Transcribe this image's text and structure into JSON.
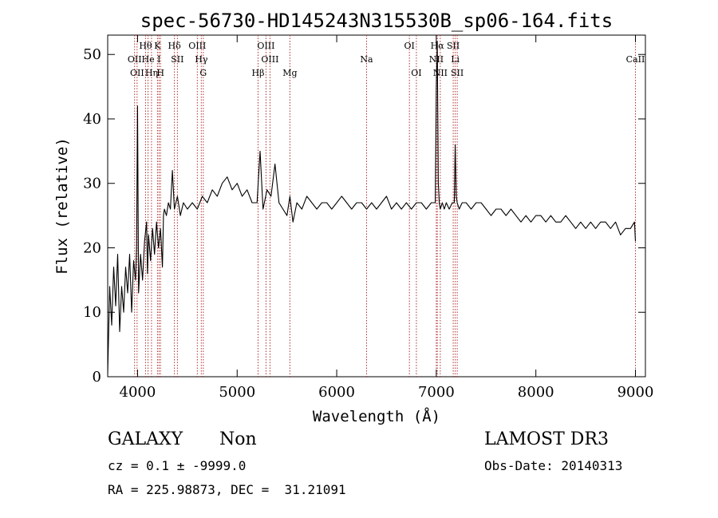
{
  "chart_data": {
    "type": "line",
    "title": "spec-56730-HD145243N315530B_sp06-164.fits",
    "xlabel": "Wavelength (Å)",
    "ylabel": "Flux (relative)",
    "xlim": [
      3700,
      9100
    ],
    "ylim": [
      0,
      53
    ],
    "xticks": [
      4000,
      5000,
      6000,
      7000,
      8000,
      9000
    ],
    "yticks": [
      0,
      10,
      20,
      30,
      40,
      50
    ],
    "grid": false,
    "line_color": "#000000",
    "marker_color": "#b03030",
    "series": [
      {
        "x": [
          3700,
          3720,
          3740,
          3760,
          3780,
          3800,
          3820,
          3840,
          3860,
          3880,
          3900,
          3920,
          3940,
          3960,
          3980,
          3990,
          4000,
          4010,
          4030,
          4050,
          4070,
          4090,
          4100,
          4110,
          4130,
          4150,
          4170,
          4190,
          4210,
          4230,
          4250,
          4260,
          4270,
          4290,
          4310,
          4330,
          4350,
          4370,
          4400,
          4430,
          4460,
          4500,
          4550,
          4600,
          4650,
          4700,
          4750,
          4800,
          4850,
          4900,
          4950,
          5000,
          5050,
          5100,
          5150,
          5200,
          5230,
          5260,
          5300,
          5340,
          5380,
          5420,
          5460,
          5500,
          5530,
          5560,
          5600,
          5650,
          5700,
          5750,
          5800,
          5850,
          5900,
          5950,
          6000,
          6050,
          6100,
          6150,
          6200,
          6250,
          6300,
          6350,
          6400,
          6450,
          6500,
          6550,
          6600,
          6650,
          6700,
          6750,
          6800,
          6850,
          6900,
          6950,
          6990,
          7000,
          7010,
          7020,
          7030,
          7040,
          7060,
          7080,
          7100,
          7130,
          7160,
          7180,
          7190,
          7200,
          7210,
          7230,
          7260,
          7300,
          7350,
          7400,
          7450,
          7500,
          7550,
          7600,
          7650,
          7700,
          7750,
          7800,
          7850,
          7900,
          7950,
          8000,
          8050,
          8100,
          8150,
          8200,
          8250,
          8300,
          8350,
          8400,
          8450,
          8500,
          8550,
          8600,
          8650,
          8700,
          8750,
          8800,
          8850,
          8900,
          8950,
          8990,
          9000
        ],
        "y": [
          0.5,
          14,
          8,
          17,
          11,
          19,
          7,
          14,
          10,
          17,
          13,
          19,
          10,
          18,
          15,
          20,
          42,
          13,
          19,
          15,
          21,
          24,
          16,
          22,
          18,
          23,
          19,
          24,
          20,
          23,
          17,
          25,
          26,
          25,
          27,
          26,
          32,
          26,
          28,
          25,
          27,
          26,
          27,
          26,
          28,
          27,
          29,
          28,
          30,
          31,
          29,
          30,
          28,
          29,
          27,
          27,
          35,
          26,
          29,
          28,
          33,
          27,
          26,
          25,
          28,
          24,
          27,
          26,
          28,
          27,
          26,
          27,
          27,
          26,
          27,
          28,
          27,
          26,
          27,
          27,
          26,
          27,
          26,
          27,
          28,
          26,
          27,
          26,
          27,
          26,
          27,
          27,
          26,
          27,
          27,
          45,
          52,
          30,
          27,
          26,
          27,
          26,
          27,
          26,
          27,
          27,
          36,
          28,
          27,
          26,
          27,
          27,
          26,
          27,
          27,
          26,
          25,
          26,
          26,
          25,
          26,
          25,
          24,
          25,
          24,
          25,
          25,
          24,
          25,
          24,
          24,
          25,
          24,
          23,
          24,
          23,
          24,
          23,
          24,
          24,
          23,
          24,
          22,
          23,
          23,
          24,
          21
        ]
      }
    ],
    "line_markers": [
      {
        "wl": 3970,
        "label": "OII",
        "row": 2
      },
      {
        "wl": 3995,
        "label": "OII",
        "row": 3
      },
      {
        "wl": 4080,
        "label": "Hθ",
        "row": 1
      },
      {
        "wl": 4105,
        "label": "He",
        "row": 2
      },
      {
        "wl": 4140,
        "label": "Hη",
        "row": 3
      },
      {
        "wl": 4200,
        "label": "K",
        "row": 1
      },
      {
        "wl": 4215,
        "label": "I",
        "row": 2
      },
      {
        "wl": 4230,
        "label": "H",
        "row": 3
      },
      {
        "wl": 4370,
        "label": "Hδ",
        "row": 1
      },
      {
        "wl": 4400,
        "label": "SII",
        "row": 2
      },
      {
        "wl": 4600,
        "label": "OIII",
        "row": 1
      },
      {
        "wl": 4640,
        "label": "Hγ",
        "row": 2
      },
      {
        "wl": 4660,
        "label": "G",
        "row": 3
      },
      {
        "wl": 5210,
        "label": "Hβ",
        "row": 3
      },
      {
        "wl": 5290,
        "label": "OIII",
        "row": 1
      },
      {
        "wl": 5330,
        "label": "OIII",
        "row": 2
      },
      {
        "wl": 5530,
        "label": "Mg",
        "row": 3
      },
      {
        "wl": 6300,
        "label": "Na",
        "row": 2
      },
      {
        "wl": 6730,
        "label": "OI",
        "row": 1
      },
      {
        "wl": 6800,
        "label": "OI",
        "row": 3
      },
      {
        "wl": 7000,
        "label": "NII",
        "row": 2
      },
      {
        "wl": 7010,
        "label": "Hα",
        "row": 1
      },
      {
        "wl": 7040,
        "label": "NII",
        "row": 3
      },
      {
        "wl": 7170,
        "label": "SII",
        "row": 1
      },
      {
        "wl": 7190,
        "label": "Li",
        "row": 2
      },
      {
        "wl": 7210,
        "label": "SII",
        "row": 3
      },
      {
        "wl": 9000,
        "label": "CaII",
        "row": 2
      }
    ]
  },
  "info": {
    "object_class": "GALAXY",
    "subclass": "Non",
    "survey": "LAMOST DR3",
    "cz": "cz = 0.1 ± -9999.0",
    "obs_date": "Obs-Date: 20140313",
    "coords": "RA = 225.98873, DEC =  31.21091"
  }
}
